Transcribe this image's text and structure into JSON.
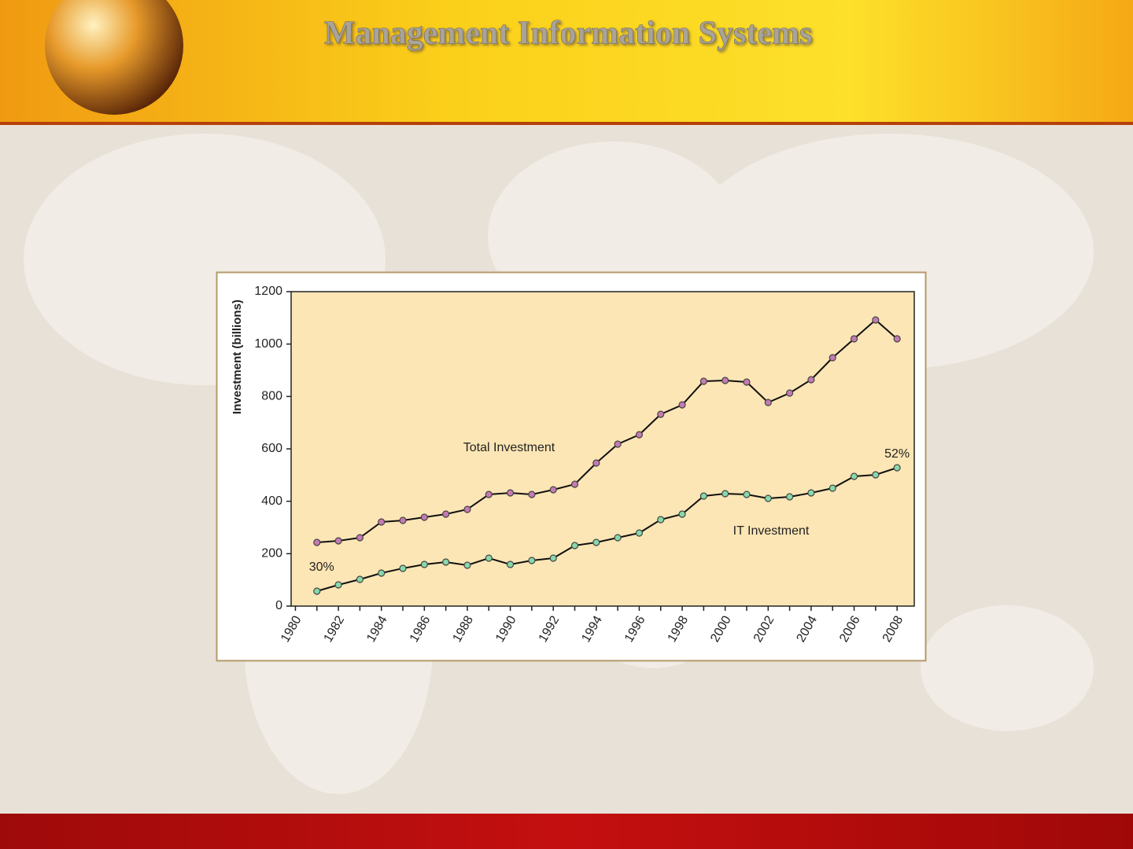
{
  "header": {
    "title": "Management Information Systems"
  },
  "chart_data": {
    "type": "line",
    "y_label": "Investment (billions)",
    "x": [
      1981,
      1982,
      1983,
      1984,
      1985,
      1986,
      1987,
      1988,
      1989,
      1990,
      1991,
      1992,
      1993,
      1994,
      1995,
      1996,
      1997,
      1998,
      1999,
      2000,
      2001,
      2002,
      2003,
      2004,
      2005,
      2006,
      2007,
      2008
    ],
    "series": [
      {
        "name": "Total Investment",
        "color": "#c47bb3",
        "values": [
          243,
          249,
          261,
          321,
          327,
          339,
          351,
          369,
          426,
          432,
          426,
          444,
          465,
          546,
          618,
          654,
          732,
          768,
          858,
          861,
          855,
          777,
          813,
          864,
          948,
          1020,
          1092,
          1020
        ]
      },
      {
        "name": "IT Investment",
        "color": "#86d9ab",
        "values": [
          57,
          81,
          102,
          126,
          144,
          159,
          168,
          156,
          183,
          159,
          174,
          183,
          231,
          243,
          261,
          279,
          330,
          351,
          420,
          429,
          426,
          411,
          417,
          432,
          450,
          495,
          501,
          528
        ]
      }
    ],
    "annotations": [
      "30%",
      "52%"
    ],
    "xlim": [
      1979.8,
      2008.8
    ],
    "xticks": [
      1980,
      1982,
      1984,
      1986,
      1988,
      1990,
      1992,
      1994,
      1996,
      1998,
      2000,
      2002,
      2004,
      2006,
      2008
    ],
    "ylim": [
      0,
      1200
    ],
    "yticks": [
      0,
      200,
      400,
      600,
      800,
      1000,
      1200
    ],
    "grid": false
  }
}
